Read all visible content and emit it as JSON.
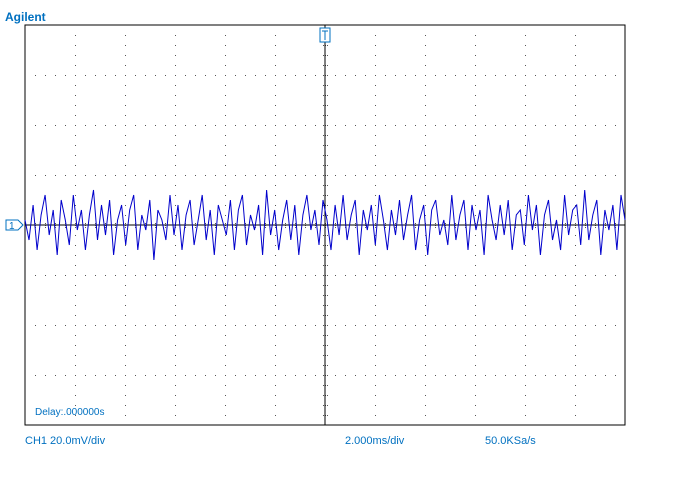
{
  "screen": {
    "brand": "Agilent",
    "delay": "Delay:.000000s",
    "channel_scale": "CH1 20.0mV/div",
    "timebase": "2.000ms/div",
    "sample_rate": "50.0KSa/s",
    "channel_marker": "1",
    "trace": {
      "color": "#0000cc",
      "values": [
        0.1,
        -0.3,
        0.4,
        -0.5,
        0.2,
        0.6,
        -0.2,
        0.3,
        -0.6,
        0.5,
        0.1,
        -0.4,
        0.6,
        -0.1,
        0.3,
        -0.5,
        0.2,
        0.7,
        -0.3,
        0.4,
        -0.2,
        0.5,
        -0.6,
        0.1,
        0.4,
        -0.4,
        0.3,
        0.6,
        -0.5,
        0.2,
        -0.1,
        0.5,
        -0.7,
        0.3,
        0.1,
        -0.3,
        0.6,
        -0.2,
        0.4,
        -0.5,
        0.2,
        0.5,
        -0.4,
        0.1,
        0.6,
        -0.3,
        0.3,
        -0.6,
        0.4,
        0.1,
        -0.2,
        0.5,
        -0.5,
        0.3,
        0.6,
        -0.4,
        0.2,
        -0.1,
        0.4,
        -0.6,
        0.7,
        -0.2,
        0.3,
        -0.5,
        0.1,
        0.5,
        -0.3,
        0.4,
        -0.6,
        0.2,
        0.6,
        -0.1,
        0.3,
        -0.4,
        0.5,
        0.1,
        -0.5,
        0.4,
        -0.2,
        0.6,
        -0.3,
        0.2,
        0.5,
        -0.6,
        0.3,
        -0.1,
        0.4,
        -0.4,
        0.6,
        0.1,
        -0.5,
        0.3,
        -0.2,
        0.5,
        -0.3,
        0.2,
        0.6,
        -0.5,
        0.1,
        0.4,
        -0.6,
        0.3,
        0.5,
        -0.2,
        0.1,
        -0.4,
        0.6,
        -0.3,
        0.2,
        0.5,
        -0.5,
        0.4,
        -0.1,
        0.3,
        -0.6,
        0.6,
        0.1,
        -0.3,
        0.4,
        -0.2,
        0.5,
        -0.5,
        0.2,
        0.3,
        -0.4,
        0.6,
        -0.1,
        0.4,
        -0.6,
        0.2,
        0.5,
        -0.3,
        0.1,
        -0.5,
        0.6,
        -0.2,
        0.3,
        0.4,
        -0.4,
        0.7,
        -0.3,
        0.2,
        0.5,
        -0.6,
        0.3,
        -0.1,
        0.4,
        -0.5,
        0.6,
        0.1
      ]
    }
  }
}
